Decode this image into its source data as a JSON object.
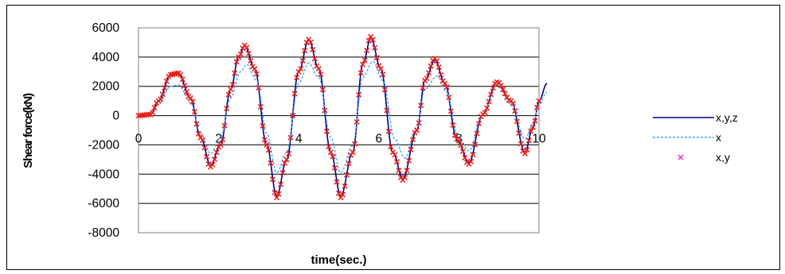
{
  "chart_data": {
    "type": "line",
    "xlabel": "time(sec.)",
    "ylabel": "Shear force(kN)",
    "xlim": [
      0,
      10
    ],
    "ylim": [
      -8000,
      6000
    ],
    "x_ticks": [
      0,
      2,
      4,
      6,
      8,
      10
    ],
    "y_ticks": [
      6000,
      4000,
      2000,
      0,
      -2000,
      -4000,
      -6000,
      -8000
    ],
    "grid": "horizontal",
    "legend_position": "right",
    "series": [
      {
        "name": "x,y,z",
        "style": "solid",
        "color": "#00008b",
        "points": [
          [
            0,
            0
          ],
          [
            0.3,
            80
          ],
          [
            0.5,
            1000
          ],
          [
            0.8,
            2800
          ],
          [
            1.0,
            2850
          ],
          [
            1.3,
            1200
          ],
          [
            1.55,
            -1500
          ],
          [
            1.8,
            -3400
          ],
          [
            2.05,
            -2000
          ],
          [
            2.3,
            1800
          ],
          [
            2.5,
            4000
          ],
          [
            2.65,
            4800
          ],
          [
            2.9,
            3200
          ],
          [
            3.2,
            -2000
          ],
          [
            3.45,
            -5500
          ],
          [
            3.7,
            -3000
          ],
          [
            4.0,
            3000
          ],
          [
            4.25,
            5200
          ],
          [
            4.5,
            3200
          ],
          [
            4.8,
            -2500
          ],
          [
            5.05,
            -5500
          ],
          [
            5.35,
            -2500
          ],
          [
            5.6,
            3500
          ],
          [
            5.8,
            5300
          ],
          [
            6.05,
            3200
          ],
          [
            6.35,
            -2500
          ],
          [
            6.6,
            -4300
          ],
          [
            6.95,
            -1000
          ],
          [
            7.15,
            2400
          ],
          [
            7.4,
            3800
          ],
          [
            7.65,
            2200
          ],
          [
            7.95,
            -1600
          ],
          [
            8.25,
            -3200
          ],
          [
            8.6,
            100
          ],
          [
            8.95,
            2300
          ],
          [
            9.3,
            1000
          ],
          [
            9.65,
            -2500
          ],
          [
            9.85,
            -800
          ],
          [
            10.0,
            1000
          ],
          [
            10.2,
            2200
          ]
        ]
      },
      {
        "name": "x",
        "style": "dashed",
        "color": "#3da3ff",
        "points": [
          [
            0,
            0
          ],
          [
            0.3,
            60
          ],
          [
            0.5,
            800
          ],
          [
            0.8,
            2000
          ],
          [
            1.0,
            2100
          ],
          [
            1.3,
            900
          ],
          [
            1.55,
            -1200
          ],
          [
            1.8,
            -2600
          ],
          [
            2.05,
            -1500
          ],
          [
            2.3,
            1200
          ],
          [
            2.55,
            3000
          ],
          [
            2.7,
            3500
          ],
          [
            2.95,
            2400
          ],
          [
            3.2,
            -1200
          ],
          [
            3.45,
            -3900
          ],
          [
            3.7,
            -2500
          ],
          [
            4.0,
            2200
          ],
          [
            4.25,
            3600
          ],
          [
            4.5,
            2600
          ],
          [
            4.8,
            -1500
          ],
          [
            5.05,
            -3900
          ],
          [
            5.35,
            -2000
          ],
          [
            5.6,
            2600
          ],
          [
            5.85,
            3700
          ],
          [
            6.1,
            2400
          ],
          [
            6.4,
            -1600
          ],
          [
            6.65,
            -2900
          ],
          [
            6.95,
            -800
          ],
          [
            7.15,
            1800
          ],
          [
            7.45,
            2700
          ],
          [
            7.7,
            1600
          ],
          [
            7.95,
            -1200
          ],
          [
            8.25,
            -2400
          ],
          [
            8.6,
            100
          ],
          [
            8.95,
            2100
          ],
          [
            9.3,
            800
          ],
          [
            9.65,
            -1600
          ],
          [
            9.85,
            -600
          ],
          [
            10.0,
            800
          ],
          [
            10.2,
            1600
          ]
        ]
      },
      {
        "name": "x,y",
        "style": "markers",
        "color": "#e8231c",
        "legend_marker_color": "#e62ebf",
        "marker_step": 0.05,
        "points": [
          [
            0,
            0
          ],
          [
            0.3,
            80
          ],
          [
            0.5,
            1000
          ],
          [
            0.8,
            2800
          ],
          [
            1.0,
            2900
          ],
          [
            1.3,
            1200
          ],
          [
            1.55,
            -1500
          ],
          [
            1.8,
            -3500
          ],
          [
            2.05,
            -2000
          ],
          [
            2.3,
            1800
          ],
          [
            2.5,
            4000
          ],
          [
            2.65,
            4800
          ],
          [
            2.9,
            3200
          ],
          [
            3.2,
            -2000
          ],
          [
            3.45,
            -5600
          ],
          [
            3.7,
            -3000
          ],
          [
            4.0,
            3000
          ],
          [
            4.25,
            5200
          ],
          [
            4.5,
            3200
          ],
          [
            4.8,
            -2500
          ],
          [
            5.05,
            -5600
          ],
          [
            5.35,
            -2500
          ],
          [
            5.6,
            3500
          ],
          [
            5.8,
            5400
          ],
          [
            6.05,
            3200
          ],
          [
            6.35,
            -2500
          ],
          [
            6.6,
            -4400
          ],
          [
            6.95,
            -1000
          ],
          [
            7.15,
            2400
          ],
          [
            7.4,
            3900
          ],
          [
            7.65,
            2200
          ],
          [
            7.95,
            -1600
          ],
          [
            8.25,
            -3300
          ],
          [
            8.6,
            100
          ],
          [
            8.95,
            2300
          ],
          [
            9.3,
            1000
          ],
          [
            9.65,
            -2600
          ],
          [
            9.85,
            -800
          ],
          [
            10.0,
            1000
          ]
        ]
      }
    ]
  }
}
